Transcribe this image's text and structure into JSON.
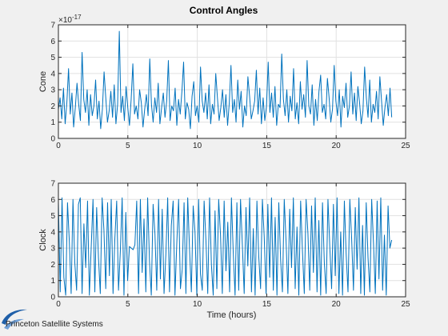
{
  "figure": {
    "footer": "Princeton Satellite Systems",
    "logo_icon": "psslogo-swoosh-icon",
    "colors": {
      "background": "#f0f0f0",
      "plot_bg": "#ffffff",
      "line": "#0072bd",
      "grid": "#e1e1e1",
      "axis": "#262626",
      "logo": "#1f5fa8"
    }
  },
  "chart_data": [
    {
      "type": "line",
      "title": "Control Angles",
      "xlabel": "",
      "ylabel": "Cone",
      "y_exponent_label": "×10",
      "y_exponent": "-17",
      "xlim": [
        0,
        25
      ],
      "ylim": [
        0,
        7
      ],
      "xticks": [
        0,
        5,
        10,
        15,
        20,
        25
      ],
      "yticks": [
        0,
        1,
        2,
        3,
        4,
        5,
        6,
        7
      ],
      "xtick_labels": [
        "0",
        "5",
        "10",
        "15",
        "20",
        "25"
      ],
      "ytick_labels": [
        "0",
        "1",
        "2",
        "3",
        "4",
        "5",
        "6",
        "7"
      ],
      "grid": true,
      "series": [
        {
          "x_range": [
            0,
            24
          ],
          "y": [
            1.8,
            2.5,
            1.2,
            3.1,
            0.9,
            2.2,
            4.3,
            1.5,
            2.8,
            0.7,
            1.9,
            3.4,
            2.1,
            1.1,
            5.3,
            2.4,
            1.6,
            3.0,
            0.8,
            2.7,
            1.4,
            2.0,
            3.6,
            1.2,
            2.3,
            0.6,
            1.8,
            4.1,
            2.5,
            1.0,
            1.7,
            2.9,
            1.3,
            3.3,
            0.9,
            2.1,
            6.6,
            1.6,
            2.6,
            1.1,
            3.2,
            1.9,
            0.8,
            2.4,
            4.6,
            1.5,
            2.0,
            1.2,
            3.0,
            2.2,
            0.7,
            1.8,
            2.7,
            1.4,
            4.9,
            2.1,
            1.0,
            2.5,
            1.6,
            3.4,
            0.9,
            1.9,
            2.8,
            1.3,
            2.3,
            4.8,
            1.1,
            2.0,
            1.7,
            3.1,
            0.8,
            2.4,
            1.5,
            2.9,
            4.7,
            1.2,
            2.2,
            1.8,
            0.6,
            2.6,
            3.5,
            1.4,
            2.0,
            1.0,
            4.4,
            2.3,
            1.6,
            2.8,
            1.2,
            3.3,
            0.9,
            2.1,
            1.5,
            4.0,
            2.5,
            1.1,
            1.9,
            3.0,
            1.3,
            2.7,
            0.8,
            2.2,
            4.5,
            1.6,
            2.4,
            1.0,
            3.6,
            1.8,
            2.9,
            0.7,
            2.0,
            1.4,
            3.8,
            2.6,
            1.2,
            1.7,
            2.3,
            4.2,
            1.5,
            3.1,
            0.9,
            2.5,
            1.1,
            2.0,
            4.7,
            1.6,
            2.8,
            1.3,
            3.2,
            0.8,
            2.1,
            1.9,
            5.2,
            2.4,
            1.4,
            3.0,
            1.0,
            2.6,
            1.7,
            4.3,
            1.2,
            2.2,
            0.9,
            3.5,
            1.8,
            2.7,
            1.3,
            4.8,
            2.0,
            1.5,
            3.3,
            0.8,
            2.4,
            1.1,
            2.9,
            3.9,
            1.6,
            2.1,
            1.2,
            3.7,
            2.5,
            1.0,
            1.8,
            4.5,
            2.3,
            1.4,
            3.0,
            0.7,
            2.6,
            1.9,
            3.4,
            1.3,
            2.0,
            4.1,
            1.5,
            2.8,
            1.1,
            3.2,
            2.2,
            0.9,
            1.7,
            4.4,
            2.5,
            1.3,
            3.6,
            1.0,
            2.1,
            1.6,
            2.9,
            1.2,
            3.8,
            2.3,
            0.8,
            1.9,
            2.7,
            1.4,
            3.1,
            1.3
          ],
          "notes": "dense noise between ~0.5 and ~5, peak ~6.6 near t=2.3 h"
        }
      ]
    },
    {
      "type": "line",
      "title": "",
      "xlabel": "Time (hours)",
      "ylabel": "Clock",
      "xlim": [
        0,
        25
      ],
      "ylim": [
        0,
        7
      ],
      "xticks": [
        0,
        5,
        10,
        15,
        20,
        25
      ],
      "yticks": [
        0,
        1,
        2,
        3,
        4,
        5,
        6,
        7
      ],
      "xtick_labels": [
        "0",
        "5",
        "10",
        "15",
        "20",
        "25"
      ],
      "ytick_labels": [
        "0",
        "1",
        "2",
        "3",
        "4",
        "5",
        "6",
        "7"
      ],
      "grid": true,
      "series": [
        {
          "x_range": [
            0,
            24
          ],
          "y": [
            5.9,
            0.3,
            6.1,
            1.2,
            0.1,
            5.8,
            3.4,
            0.2,
            6.0,
            2.1,
            0.4,
            5.7,
            6.1,
            0.2,
            4.5,
            1.8,
            5.9,
            0.1,
            3.0,
            6.0,
            0.3,
            5.5,
            2.4,
            0.2,
            6.1,
            4.1,
            0.5,
            5.8,
            1.3,
            6.0,
            0.2,
            3.6,
            5.9,
            0.4,
            2.8,
            6.1,
            0.1,
            5.2,
            1.0,
            3.1,
            3.0,
            2.9,
            3.2,
            5.9,
            0.2,
            6.0,
            1.5,
            4.8,
            0.3,
            6.1,
            2.2,
            0.1,
            5.7,
            3.9,
            0.4,
            6.0,
            1.1,
            5.4,
            0.2,
            2.6,
            6.1,
            0.3,
            4.4,
            5.9,
            0.1,
            3.3,
            6.0,
            0.5,
            1.7,
            5.8,
            0.2,
            6.1,
            2.9,
            0.3,
            5.6,
            4.0,
            0.1,
            6.0,
            1.4,
            0.4,
            5.9,
            3.5,
            0.2,
            6.1,
            2.0,
            0.1,
            5.3,
            0.5,
            6.0,
            3.8,
            0.2,
            5.9,
            1.6,
            4.6,
            0.3,
            6.1,
            2.7,
            0.1,
            5.8,
            0.4,
            6.0,
            3.2,
            0.2,
            5.5,
            1.9,
            6.1,
            0.3,
            4.2,
            0.1,
            5.9,
            2.5,
            0.5,
            6.0,
            3.7,
            0.2,
            5.7,
            1.2,
            6.1,
            0.4,
            4.9,
            0.1,
            5.8,
            2.3,
            0.3,
            6.0,
            3.4,
            0.2,
            5.4,
            1.8,
            6.1,
            0.5,
            4.3,
            0.1,
            5.9,
            2.8,
            0.2,
            6.0,
            3.9,
            0.4,
            5.6,
            1.5,
            6.1,
            0.3,
            4.7,
            0.1,
            5.8,
            2.1,
            0.2,
            6.0,
            3.1,
            0.5,
            5.7,
            1.3,
            6.1,
            0.2,
            4.0,
            0.1,
            5.9,
            2.6,
            0.3,
            6.0,
            3.6,
            0.4,
            5.5,
            1.7,
            6.1,
            0.2,
            4.4,
            0.1,
            5.8,
            2.4,
            0.3,
            6.0,
            3.3,
            0.2,
            5.9,
            1.1,
            6.1,
            0.4,
            3.8,
            0.1,
            5.6,
            3.0,
            3.5
          ],
          "notes": "signal switching rapidly between ~0 and ~6.1 (wrapped angle)"
        }
      ]
    }
  ]
}
